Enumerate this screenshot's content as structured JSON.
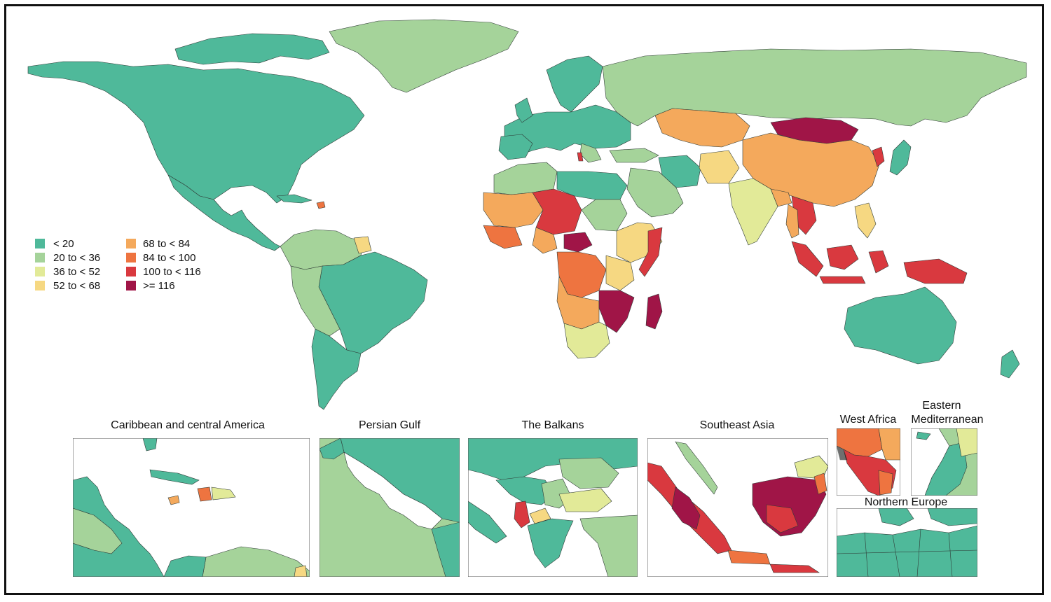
{
  "colors": {
    "c1": "#4fb99a",
    "c2": "#a5d39a",
    "c3": "#e2ea98",
    "c4": "#f6d882",
    "c5": "#f4a95c",
    "c6": "#ee7440",
    "c7": "#d9393f",
    "c8": "#a01547",
    "border": "#2f3a36",
    "background": "#ffffff"
  },
  "legend": {
    "items": [
      {
        "label": "< 20",
        "color": "c1"
      },
      {
        "label": "20 to < 36",
        "color": "c2"
      },
      {
        "label": "36 to < 52",
        "color": "c3"
      },
      {
        "label": "52 to < 68",
        "color": "c4"
      },
      {
        "label": "68 to < 84",
        "color": "c5"
      },
      {
        "label": "84 to < 100",
        "color": "c6"
      },
      {
        "label": "100 to < 116",
        "color": "c7"
      },
      {
        "label": ">= 116",
        "color": "c8"
      }
    ]
  },
  "insets": {
    "caribbean": "Caribbean and central America",
    "persian_gulf": "Persian Gulf",
    "balkans": "The Balkans",
    "southeast_asia": "Southeast Asia",
    "west_africa": "West Africa",
    "eastern_med_line1": "Eastern",
    "eastern_med_line2": "Mediterranean",
    "northern_europe": "Northern Europe"
  }
}
